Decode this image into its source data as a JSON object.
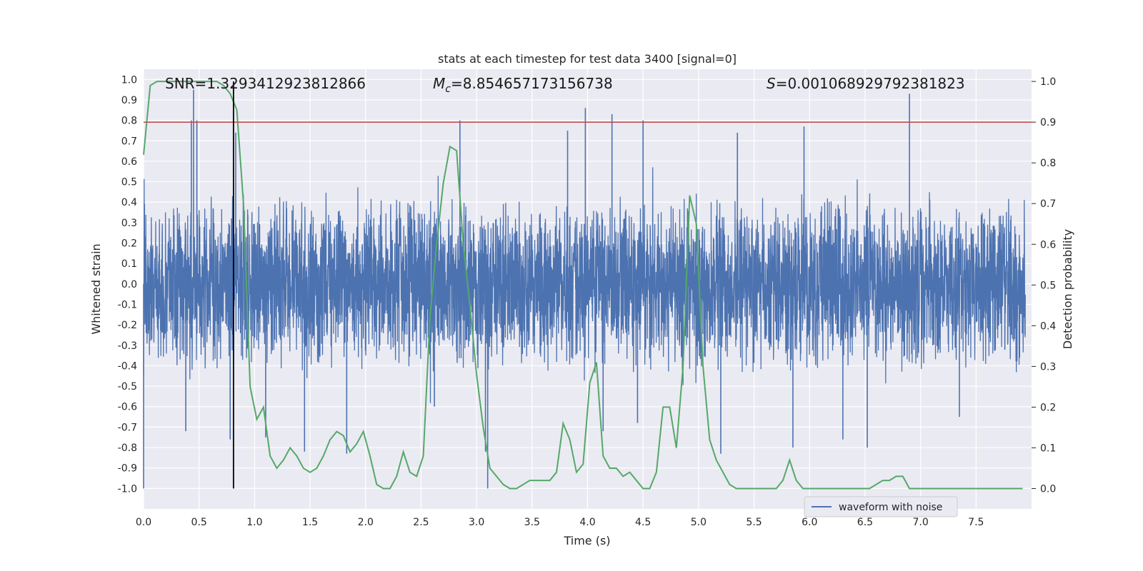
{
  "chart_data": {
    "type": "line",
    "title": "stats at each timestep for test data 3400 [signal=0]",
    "xlabel": "Time (s)",
    "ylabel": "Whitened strain",
    "ylabel_right": "Detection probability",
    "xlim": [
      0.0,
      8.0
    ],
    "ylim": [
      -1.1,
      1.05
    ],
    "ylim_right": [
      -0.05,
      1.03
    ],
    "grid": true,
    "x_ticks": [
      "0.0",
      "0.5",
      "1.0",
      "1.5",
      "2.0",
      "2.5",
      "3.0",
      "3.5",
      "4.0",
      "4.5",
      "5.0",
      "5.5",
      "6.0",
      "6.5",
      "7.0",
      "7.5"
    ],
    "y_ticks": [
      "1.0",
      "0.9",
      "0.8",
      "0.7",
      "0.6",
      "0.5",
      "0.4",
      "0.3",
      "0.2",
      "0.1",
      "0.0",
      "-0.1",
      "-0.2",
      "-0.3",
      "-0.4",
      "-0.5",
      "-0.6",
      "-0.7",
      "-0.8",
      "-0.9",
      "-1.0"
    ],
    "y_ticks_right": [
      "1.0",
      "0.9",
      "0.8",
      "0.7",
      "0.6",
      "0.5",
      "0.4",
      "0.3",
      "0.2",
      "0.1",
      "0.0"
    ],
    "annotations": {
      "snr": "SNR=1.3293412923812866",
      "mc_symbol": "M",
      "mc_sub": "c",
      "mc_value": "=8.854657173156738",
      "s_symbol": "S",
      "s_value": "=0.001068929792381823"
    },
    "vertical_marker_time": 0.81,
    "threshold": 0.9,
    "legend": {
      "label": "waveform with noise",
      "position": "lower-right"
    },
    "series": [
      {
        "name": "waveform with noise",
        "axis": "left",
        "color": "#4c72b0",
        "envelope_typical": 0.42,
        "spikes": [
          {
            "t": 0.0,
            "v": -1.0
          },
          {
            "t": 0.45,
            "v": 0.95
          },
          {
            "t": 0.43,
            "v": 0.8
          },
          {
            "t": 0.48,
            "v": 0.8
          },
          {
            "t": 0.78,
            "v": -0.76
          },
          {
            "t": 0.83,
            "v": 0.74
          },
          {
            "t": 0.38,
            "v": -0.72
          },
          {
            "t": 1.45,
            "v": -0.82
          },
          {
            "t": 1.83,
            "v": -0.83
          },
          {
            "t": 2.85,
            "v": 0.8
          },
          {
            "t": 3.1,
            "v": -1.0
          },
          {
            "t": 3.08,
            "v": -0.82
          },
          {
            "t": 3.82,
            "v": 0.75
          },
          {
            "t": 3.98,
            "v": 0.86
          },
          {
            "t": 4.22,
            "v": 0.83
          },
          {
            "t": 4.5,
            "v": 0.8
          },
          {
            "t": 4.14,
            "v": -0.72
          },
          {
            "t": 4.45,
            "v": -0.68
          },
          {
            "t": 5.2,
            "v": -0.83
          },
          {
            "t": 5.35,
            "v": 0.74
          },
          {
            "t": 5.85,
            "v": -0.8
          },
          {
            "t": 5.95,
            "v": 0.77
          },
          {
            "t": 6.52,
            "v": -0.8
          },
          {
            "t": 6.9,
            "v": 0.93
          },
          {
            "t": 6.3,
            "v": -0.76
          },
          {
            "t": 7.35,
            "v": -0.65
          },
          {
            "t": 2.62,
            "v": -0.6
          },
          {
            "t": 1.1,
            "v": -0.75
          }
        ]
      },
      {
        "name": "detection probability",
        "axis": "right",
        "color": "#55a868",
        "x": [
          0.0,
          0.06,
          0.12,
          0.18,
          0.24,
          0.3,
          0.36,
          0.42,
          0.48,
          0.54,
          0.6,
          0.66,
          0.72,
          0.78,
          0.84,
          0.9,
          0.96,
          1.02,
          1.08,
          1.14,
          1.2,
          1.26,
          1.32,
          1.38,
          1.44,
          1.5,
          1.56,
          1.62,
          1.68,
          1.74,
          1.8,
          1.86,
          1.92,
          1.98,
          2.04,
          2.1,
          2.16,
          2.22,
          2.28,
          2.34,
          2.4,
          2.46,
          2.52,
          2.58,
          2.64,
          2.7,
          2.76,
          2.82,
          2.88,
          2.94,
          3.0,
          3.06,
          3.12,
          3.18,
          3.24,
          3.3,
          3.36,
          3.42,
          3.48,
          3.54,
          3.6,
          3.66,
          3.72,
          3.78,
          3.84,
          3.9,
          3.96,
          4.02,
          4.08,
          4.14,
          4.2,
          4.26,
          4.32,
          4.38,
          4.44,
          4.5,
          4.56,
          4.62,
          4.68,
          4.74,
          4.8,
          4.86,
          4.92,
          4.98,
          5.04,
          5.1,
          5.16,
          5.22,
          5.28,
          5.34,
          5.4,
          5.46,
          5.52,
          5.58,
          5.64,
          5.7,
          5.76,
          5.82,
          5.88,
          5.94,
          6.0,
          6.06,
          6.12,
          6.18,
          6.24,
          6.3,
          6.36,
          6.42,
          6.48,
          6.54,
          6.6,
          6.66,
          6.72,
          6.78,
          6.84,
          6.9,
          6.96,
          7.02,
          7.08,
          7.14,
          7.2,
          7.26,
          7.32,
          7.38,
          7.44,
          7.5,
          7.56,
          7.62,
          7.68,
          7.74,
          7.8,
          7.86,
          7.92
        ],
        "y": [
          0.82,
          0.99,
          1.0,
          1.0,
          1.0,
          1.0,
          1.0,
          1.0,
          1.0,
          1.0,
          1.0,
          1.0,
          0.99,
          0.97,
          0.93,
          0.7,
          0.25,
          0.17,
          0.2,
          0.08,
          0.05,
          0.07,
          0.1,
          0.08,
          0.05,
          0.04,
          0.05,
          0.08,
          0.12,
          0.14,
          0.13,
          0.09,
          0.11,
          0.14,
          0.08,
          0.01,
          0.0,
          0.0,
          0.03,
          0.09,
          0.04,
          0.03,
          0.08,
          0.42,
          0.6,
          0.75,
          0.84,
          0.83,
          0.6,
          0.45,
          0.28,
          0.15,
          0.05,
          0.03,
          0.01,
          0.0,
          0.0,
          0.01,
          0.02,
          0.02,
          0.02,
          0.02,
          0.04,
          0.16,
          0.12,
          0.04,
          0.06,
          0.26,
          0.31,
          0.08,
          0.05,
          0.05,
          0.03,
          0.04,
          0.02,
          0.0,
          0.0,
          0.04,
          0.2,
          0.2,
          0.1,
          0.3,
          0.72,
          0.65,
          0.3,
          0.12,
          0.07,
          0.04,
          0.01,
          0.0,
          0.0,
          0.0,
          0.0,
          0.0,
          0.0,
          0.0,
          0.02,
          0.07,
          0.02,
          0.0,
          0.0,
          0.0,
          0.0,
          0.0,
          0.0,
          0.0,
          0.0,
          0.0,
          0.0,
          0.0,
          0.01,
          0.02,
          0.02,
          0.03,
          0.03,
          0.0,
          0.0,
          0.0,
          0.0,
          0.0,
          0.0,
          0.0,
          0.0,
          0.0,
          0.0,
          0.0,
          0.0,
          0.0,
          0.0,
          0.0,
          0.0,
          0.0,
          0.0
        ]
      }
    ]
  }
}
